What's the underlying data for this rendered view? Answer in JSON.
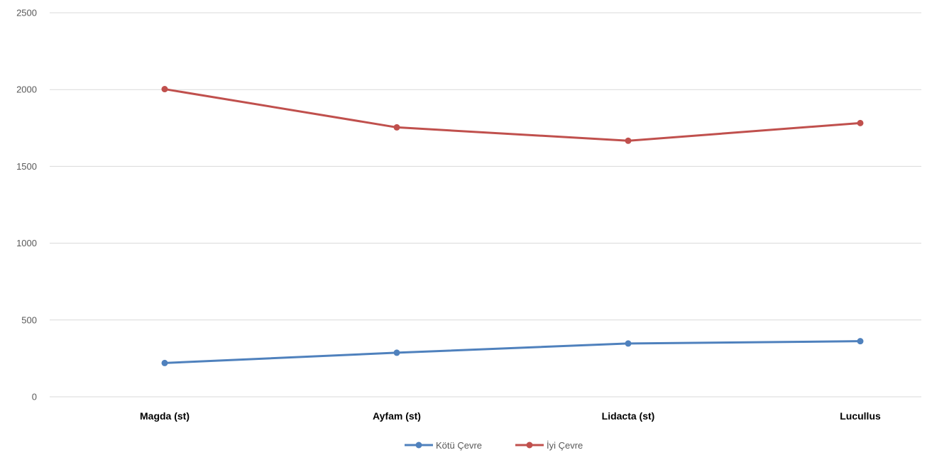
{
  "chart_data": {
    "type": "line",
    "categories": [
      "Magda (st)",
      "Ayfam (st)",
      "Lidacta (st)",
      "Lucullus"
    ],
    "series": [
      {
        "name": "Kötü Çevre",
        "values": [
          220,
          287,
          347,
          362
        ],
        "color": "#4f81bd"
      },
      {
        "name": "İyi Çevre",
        "values": [
          2003,
          1754,
          1667,
          1782
        ],
        "color": "#c0504d"
      }
    ],
    "ylim": [
      0,
      2500
    ],
    "yticks": [
      0,
      500,
      1000,
      1500,
      2000,
      2500
    ],
    "grid": true,
    "legend_position": "bottom",
    "markers": "circle"
  }
}
